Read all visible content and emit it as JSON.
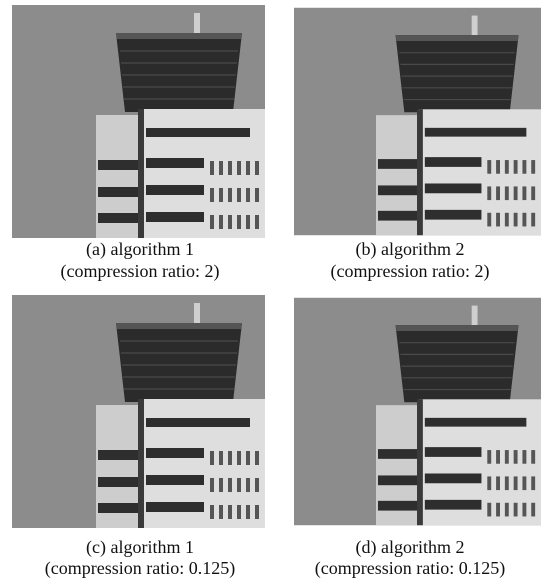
{
  "panels": [
    {
      "label": "(a) algorithm 1",
      "detail": "(compression ratio: 2)"
    },
    {
      "label": "(b) algorithm 2",
      "detail": "(compression ratio: 2)"
    },
    {
      "label": "(c) algorithm 1",
      "detail": "(compression ratio: 0.125)"
    },
    {
      "label": "(d) algorithm 2",
      "detail": "(compression ratio: 0.125)"
    }
  ]
}
